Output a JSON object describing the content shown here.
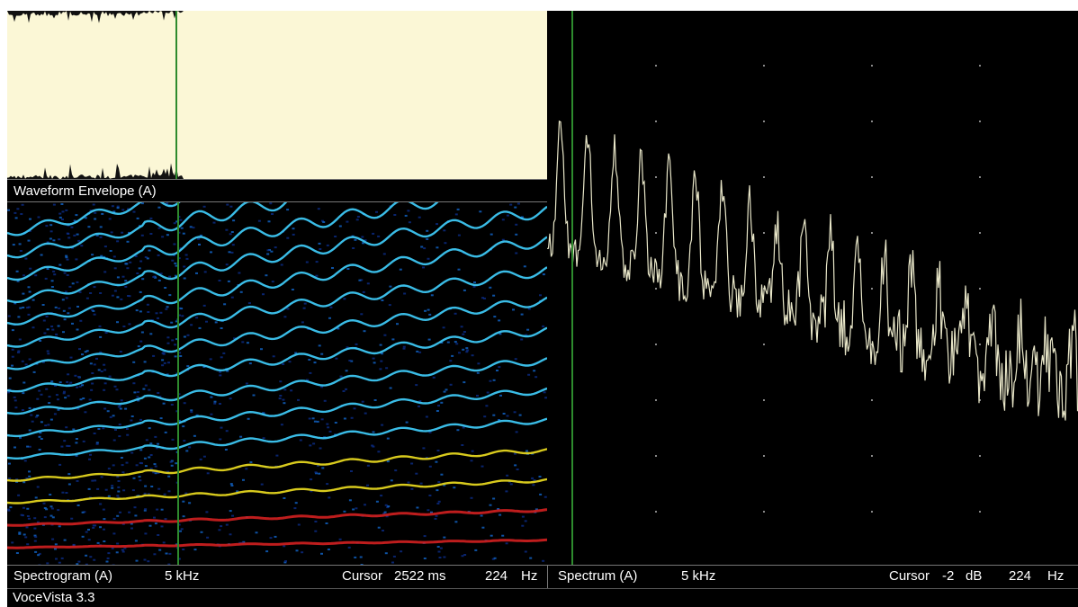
{
  "waveform": {
    "label": "Waveform Envelope (A)"
  },
  "spectrogram": {
    "label": "Spectrogram (A)",
    "range": "5 kHz",
    "cursor_label": "Cursor",
    "cursor_time": "2522 ms",
    "cursor_freq": "224",
    "cursor_unit": "Hz"
  },
  "spectrum": {
    "label": "Spectrum (A)",
    "range": "5 kHz",
    "cursor_label": "Cursor",
    "cursor_db": "-2",
    "db_unit": "dB",
    "cursor_freq": "224",
    "freq_unit": "Hz"
  },
  "footer": {
    "app_name": "VoceVista 3.3"
  },
  "colors": {
    "waveform_bg": "#fbf7d6",
    "cursor": "#2e8b2e",
    "spectrum_line": "#e8e6c8",
    "harmonic_low": "#d32020",
    "harmonic_mid": "#f0e020",
    "harmonic_high": "#40d0ff"
  }
}
